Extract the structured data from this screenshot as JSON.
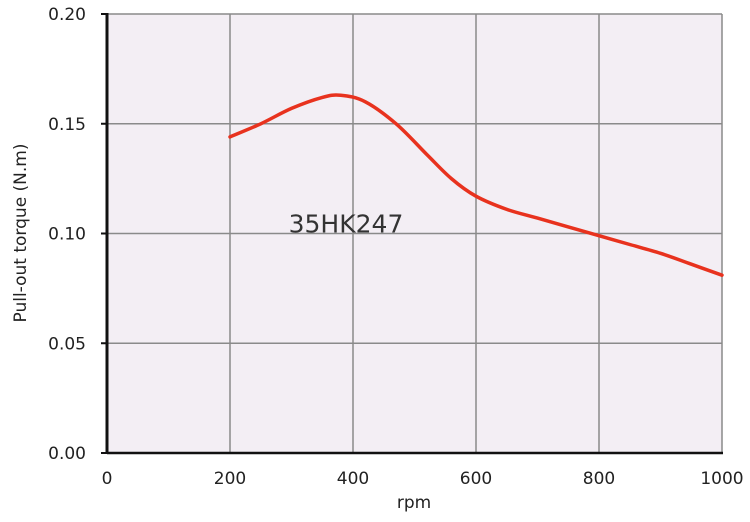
{
  "chart_data": {
    "type": "line",
    "title": "",
    "xlabel": "rpm",
    "ylabel": "Pull-out torque  (N.m)",
    "xlim": [
      0,
      1000
    ],
    "ylim": [
      0,
      0.2
    ],
    "x_ticks": [
      0,
      200,
      400,
      600,
      800,
      1000
    ],
    "y_ticks": [
      0,
      0.05,
      0.1,
      0.15,
      0.2
    ],
    "x_tick_labels": [
      "0",
      "200",
      "400",
      "600",
      "800",
      "1000"
    ],
    "y_tick_labels": [
      "0.00",
      "0.05",
      "0.10",
      "0.15",
      "0.20"
    ],
    "grid": true,
    "legend": "none",
    "plot_background": "#f3eef4",
    "grid_color": "#8a8a8a",
    "line_color": "#e8321e",
    "annotation": {
      "text": "35HK247",
      "x": 400,
      "y": 0.105
    },
    "series": [
      {
        "x": [
          200,
          250,
          300,
          350,
          380,
          420,
          470,
          520,
          560,
          600,
          650,
          700,
          750,
          800,
          850,
          900,
          950,
          1000
        ],
        "values": [
          0.144,
          0.15,
          0.157,
          0.162,
          0.163,
          0.16,
          0.15,
          0.136,
          0.125,
          0.117,
          0.111,
          0.107,
          0.103,
          0.099,
          0.095,
          0.091,
          0.086,
          0.081
        ]
      }
    ]
  }
}
